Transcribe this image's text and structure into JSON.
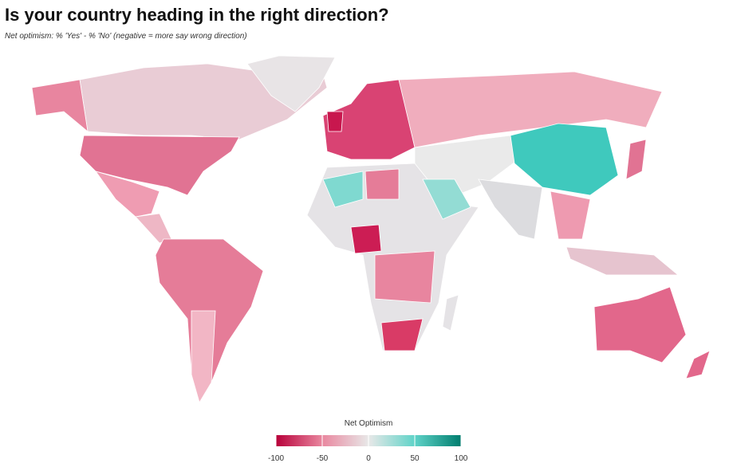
{
  "title": "Is your country heading in the right direction?",
  "subtitle": "Net optimism: % 'Yes' - % 'No' (negative = more say wrong direction)",
  "legend": {
    "title": "Net Optimism",
    "range": [
      -100,
      100
    ],
    "ticks": [
      -100,
      -50,
      0,
      50,
      100
    ],
    "colors": [
      "#b8003a",
      "#e9879f",
      "#e8e8e8",
      "#5fd3c8",
      "#007d6e"
    ]
  }
}
